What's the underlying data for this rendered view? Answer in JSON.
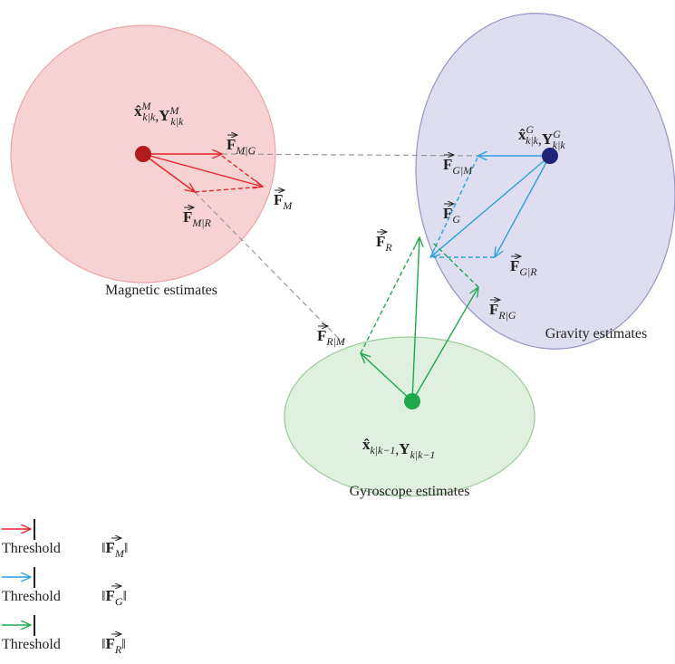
{
  "regions": [
    {
      "label": "Magnetic estimates"
    },
    {
      "label": "Gravity estimates"
    },
    {
      "label": "Gyroscope estimates"
    }
  ],
  "states": [
    {
      "parts": [
        {
          "base": "x̂",
          "sub": "k|k",
          "sup": "M"
        },
        {
          "base": "Y",
          "sub": "k|k",
          "sup": "M"
        }
      ],
      "separator": ","
    },
    {
      "parts": [
        {
          "base": "x̂",
          "sub": "k|k",
          "sup": "G"
        },
        {
          "base": "Y",
          "sub": "k|k",
          "sup": "G"
        }
      ],
      "separator": ","
    },
    {
      "parts": [
        {
          "base": "x̂",
          "sub": "k|k−1"
        },
        {
          "base": "Y",
          "sub": "k|k−1"
        }
      ],
      "separator": ","
    }
  ],
  "vectors": [
    {
      "base": "F",
      "sub": "M|G"
    },
    {
      "base": "F",
      "sub": "M"
    },
    {
      "base": "F",
      "sub": "M|R"
    },
    {
      "base": "F",
      "sub": "G|M"
    },
    {
      "base": "F",
      "sub": "G"
    },
    {
      "base": "F",
      "sub": "G|R"
    },
    {
      "base": "F",
      "sub": "R"
    },
    {
      "base": "F",
      "sub": "R|M"
    },
    {
      "base": "F",
      "sub": "R|G"
    }
  ],
  "legend": [
    {
      "label": "Threshold",
      "delim": "‖",
      "base": "F",
      "sub": "M"
    },
    {
      "label": "Threshold",
      "delim": "‖",
      "base": "F",
      "sub": "G"
    },
    {
      "label": "Threshold",
      "delim": "‖",
      "base": "F",
      "sub": "R"
    }
  ]
}
